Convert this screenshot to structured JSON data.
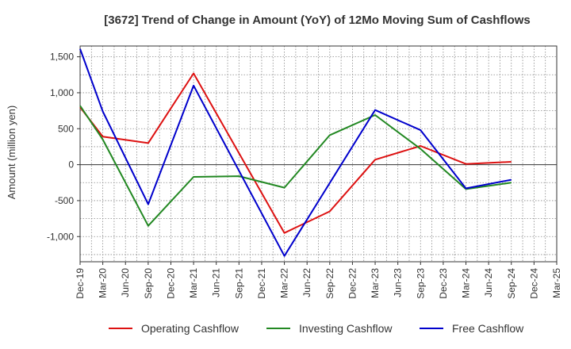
{
  "chart_data": {
    "type": "line",
    "title": "[3672]  Trend of Change in Amount (YoY) of 12Mo Moving Sum of Cashflows",
    "xlabel": "",
    "ylabel": "Amount (million yen)",
    "ylim": [
      -1350,
      1650
    ],
    "yticks": [
      1500,
      1000,
      500,
      0,
      -500,
      -1000
    ],
    "ytick_labels": [
      "1,500",
      "1,000",
      "500",
      "0",
      "-500",
      "-1,000"
    ],
    "categories": [
      "Dec-19",
      "Mar-20",
      "Jun-20",
      "Sep-20",
      "Dec-20",
      "Mar-21",
      "Jun-21",
      "Sep-21",
      "Dec-21",
      "Mar-22",
      "Jun-22",
      "Sep-22",
      "Dec-22",
      "Mar-23",
      "Jun-23",
      "Sep-23",
      "Dec-23",
      "Mar-24",
      "Jun-24",
      "Sep-24",
      "Dec-24",
      "Mar-25"
    ],
    "grid": true,
    "legend_position": "bottom",
    "series": [
      {
        "name": "Operating Cashflow",
        "color": "#dd1111",
        "values": [
          800,
          390,
          null,
          300,
          null,
          1270,
          null,
          null,
          null,
          -950,
          null,
          -650,
          null,
          70,
          null,
          260,
          null,
          10,
          null,
          40,
          null,
          null
        ]
      },
      {
        "name": "Investing Cashflow",
        "color": "#228822",
        "values": [
          820,
          350,
          null,
          -850,
          null,
          -170,
          null,
          -160,
          null,
          -320,
          null,
          410,
          null,
          690,
          null,
          220,
          null,
          -340,
          null,
          -250,
          null,
          null
        ]
      },
      {
        "name": "Free Cashflow",
        "color": "#0000cc",
        "values": [
          1610,
          740,
          null,
          -550,
          null,
          1100,
          null,
          null,
          null,
          -1270,
          null,
          null,
          null,
          760,
          null,
          480,
          null,
          -330,
          null,
          -210,
          null,
          null
        ]
      }
    ]
  }
}
